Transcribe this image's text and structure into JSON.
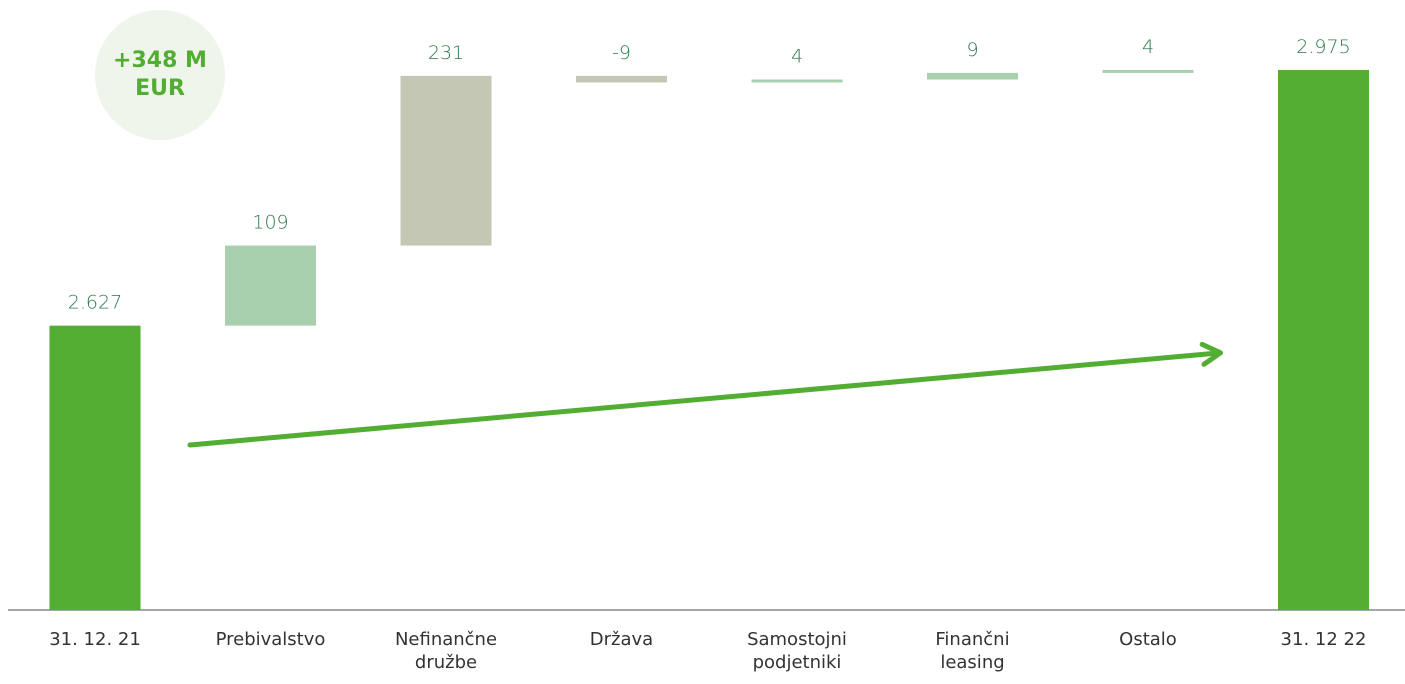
{
  "chart_data": {
    "type": "waterfall",
    "categories": [
      "31. 12. 21",
      "Prebivalstvo",
      "Nefinančne družbe",
      "Država",
      "Samostojni podjetniki",
      "Finančni leasing",
      "Ostalo",
      "31. 12 22"
    ],
    "measures": [
      "total",
      "relative",
      "relative",
      "relative",
      "relative",
      "relative",
      "relative",
      "total"
    ],
    "values": [
      2627,
      109,
      231,
      -9,
      4,
      9,
      4,
      2975
    ],
    "value_labels": [
      "2.627",
      "109",
      "231",
      "-9",
      "4",
      "9",
      "4",
      "2.975"
    ],
    "colors": [
      "#52ad32",
      "#a8cfae",
      "#c3c7b4",
      "#c3c7b4",
      "#a8cfae",
      "#a8cfae",
      "#a8cfae",
      "#52ad32"
    ],
    "ylim": [
      2240,
      3000
    ],
    "annotation": [
      "+348 M",
      "EUR"
    ]
  }
}
